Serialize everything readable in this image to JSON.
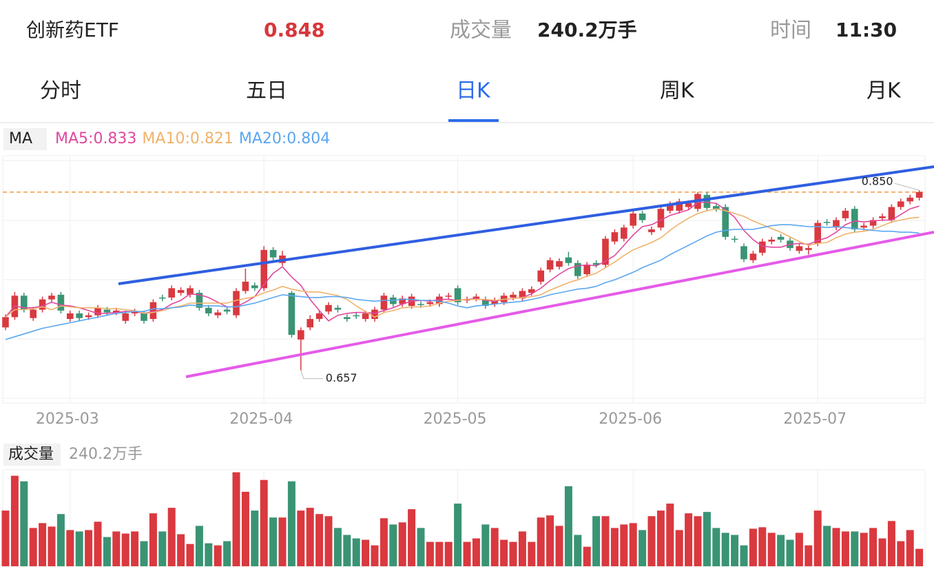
{
  "header": {
    "name": "创新药ETF",
    "price": 0.848,
    "volume_label": "成交量",
    "volume": "240.2万手",
    "time_label": "时间",
    "time": "11:30"
  },
  "tabs": [
    {
      "label": "分时"
    },
    {
      "label": "五日"
    },
    {
      "label": "日K",
      "active": true
    },
    {
      "label": "周K"
    },
    {
      "label": "月K"
    }
  ],
  "chart_data": [
    {
      "type": "candlestick",
      "legend_title": "MA",
      "up_color": "#d9393f",
      "down_color": "#3a9474",
      "ylim": [
        0.622,
        0.887
      ],
      "categories": [
        null,
        null,
        null,
        null,
        null,
        null,
        null,
        "2025-03",
        null,
        null,
        null,
        null,
        null,
        null,
        null,
        null,
        null,
        null,
        null,
        null,
        null,
        null,
        null,
        null,
        null,
        null,
        null,
        null,
        "2025-04",
        null,
        null,
        null,
        null,
        null,
        null,
        null,
        null,
        null,
        null,
        null,
        null,
        null,
        null,
        null,
        null,
        null,
        null,
        null,
        null,
        "2025-05",
        null,
        null,
        null,
        null,
        null,
        null,
        null,
        null,
        null,
        null,
        null,
        null,
        null,
        null,
        null,
        null,
        null,
        null,
        "2025-06",
        null,
        null,
        null,
        null,
        null,
        null,
        null,
        null,
        null,
        null,
        null,
        null,
        null,
        null,
        null,
        null,
        null,
        null,
        null,
        "2025-07",
        null,
        null,
        null,
        null,
        null,
        null,
        null,
        null,
        null,
        null,
        null
      ],
      "open": [
        0.703,
        0.714,
        0.737,
        0.713,
        0.722,
        0.733,
        0.738,
        0.712,
        0.718,
        0.714,
        0.716,
        0.722,
        0.719,
        0.71,
        0.718,
        0.718,
        0.712,
        0.735,
        0.735,
        0.74,
        0.738,
        0.74,
        0.724,
        0.716,
        0.722,
        0.716,
        0.742,
        0.748,
        0.745,
        0.786,
        0.772,
        0.74,
        0.69,
        0.703,
        0.712,
        0.72,
        0.724,
        0.714,
        0.716,
        0.712,
        0.712,
        0.722,
        0.735,
        0.728,
        0.726,
        0.728,
        0.728,
        0.728,
        0.736,
        0.745,
        0.732,
        0.734,
        0.733,
        0.728,
        0.73,
        0.735,
        0.734,
        0.74,
        0.752,
        0.765,
        0.768,
        0.778,
        0.772,
        0.76,
        0.772,
        0.77,
        0.795,
        0.798,
        0.812,
        0.825,
        0.805,
        0.81,
        0.828,
        0.828,
        0.832,
        0.83,
        0.845,
        0.833,
        0.832,
        0.798,
        0.79,
        0.775,
        0.783,
        0.795,
        0.8,
        0.796,
        0.785,
        0.786,
        0.793,
        0.816,
        0.81,
        0.82,
        0.83,
        0.81,
        0.812,
        0.82,
        0.818,
        0.832,
        0.838,
        0.842
      ],
      "high": [
        0.717,
        0.741,
        0.74,
        0.725,
        0.736,
        0.74,
        0.741,
        0.721,
        0.721,
        0.719,
        0.727,
        0.725,
        0.724,
        0.721,
        0.723,
        0.721,
        0.733,
        0.738,
        0.748,
        0.746,
        0.748,
        0.743,
        0.727,
        0.722,
        0.725,
        0.745,
        0.766,
        0.751,
        0.79,
        0.789,
        0.785,
        0.742,
        0.703,
        0.716,
        0.721,
        0.73,
        0.727,
        0.717,
        0.719,
        0.721,
        0.725,
        0.74,
        0.738,
        0.737,
        0.739,
        0.731,
        0.733,
        0.739,
        0.74,
        0.748,
        0.736,
        0.739,
        0.736,
        0.735,
        0.74,
        0.741,
        0.745,
        0.747,
        0.767,
        0.778,
        0.777,
        0.784,
        0.775,
        0.773,
        0.775,
        0.801,
        0.808,
        0.813,
        0.828,
        0.828,
        0.811,
        0.833,
        0.838,
        0.841,
        0.839,
        0.848,
        0.848,
        0.836,
        0.835,
        0.801,
        0.793,
        0.785,
        0.798,
        0.8,
        0.803,
        0.799,
        0.793,
        0.791,
        0.818,
        0.819,
        0.821,
        0.831,
        0.833,
        0.815,
        0.821,
        0.825,
        0.835,
        0.841,
        0.845,
        0.85
      ],
      "low": [
        0.7,
        0.711,
        0.719,
        0.71,
        0.719,
        0.73,
        0.718,
        0.709,
        0.71,
        0.711,
        0.713,
        0.716,
        0.716,
        0.707,
        0.715,
        0.707,
        0.709,
        0.731,
        0.732,
        0.737,
        0.735,
        0.721,
        0.715,
        0.713,
        0.717,
        0.713,
        0.739,
        0.742,
        0.742,
        0.775,
        0.769,
        0.692,
        0.657,
        0.7,
        0.709,
        0.717,
        0.719,
        0.709,
        0.712,
        0.709,
        0.709,
        0.719,
        0.725,
        0.725,
        0.723,
        0.724,
        0.725,
        0.725,
        0.733,
        0.727,
        0.729,
        0.731,
        0.723,
        0.725,
        0.727,
        0.732,
        0.731,
        0.737,
        0.749,
        0.762,
        0.765,
        0.769,
        0.755,
        0.757,
        0.767,
        0.767,
        0.792,
        0.795,
        0.809,
        0.815,
        0.802,
        0.807,
        0.825,
        0.825,
        0.829,
        0.827,
        0.828,
        0.827,
        0.797,
        0.794,
        0.773,
        0.772,
        0.78,
        0.792,
        0.794,
        0.785,
        0.782,
        0.781,
        0.79,
        0.812,
        0.807,
        0.817,
        0.805,
        0.807,
        0.809,
        0.817,
        0.815,
        0.829,
        0.835,
        0.839
      ],
      "close": [
        0.714,
        0.737,
        0.722,
        0.722,
        0.733,
        0.737,
        0.721,
        0.718,
        0.713,
        0.716,
        0.724,
        0.719,
        0.721,
        0.718,
        0.72,
        0.71,
        0.73,
        0.734,
        0.745,
        0.743,
        0.745,
        0.724,
        0.718,
        0.719,
        0.72,
        0.742,
        0.752,
        0.745,
        0.786,
        0.778,
        0.78,
        0.695,
        0.7,
        0.712,
        0.718,
        0.727,
        0.722,
        0.712,
        0.715,
        0.718,
        0.722,
        0.737,
        0.728,
        0.734,
        0.736,
        0.727,
        0.73,
        0.736,
        0.737,
        0.73,
        0.733,
        0.736,
        0.726,
        0.732,
        0.737,
        0.738,
        0.742,
        0.744,
        0.764,
        0.775,
        0.774,
        0.772,
        0.758,
        0.77,
        0.77,
        0.798,
        0.805,
        0.81,
        0.825,
        0.818,
        0.808,
        0.83,
        0.835,
        0.838,
        0.836,
        0.846,
        0.831,
        0.83,
        0.8,
        0.797,
        0.776,
        0.782,
        0.795,
        0.797,
        0.797,
        0.788,
        0.79,
        0.788,
        0.815,
        0.815,
        0.818,
        0.828,
        0.808,
        0.812,
        0.818,
        0.822,
        0.832,
        0.838,
        0.842,
        0.848
      ],
      "series": [
        {
          "name": "MA5:0.833",
          "color": "#e0479e",
          "values": [
            0.714,
            0.726,
            0.724,
            0.724,
            0.726,
            0.73,
            0.727,
            0.726,
            0.724,
            0.721,
            0.718,
            0.718,
            0.719,
            0.72,
            0.72,
            0.718,
            0.72,
            0.722,
            0.728,
            0.732,
            0.739,
            0.738,
            0.735,
            0.73,
            0.725,
            0.725,
            0.73,
            0.736,
            0.749,
            0.761,
            0.768,
            0.757,
            0.748,
            0.733,
            0.721,
            0.71,
            0.716,
            0.718,
            0.719,
            0.719,
            0.718,
            0.721,
            0.724,
            0.728,
            0.731,
            0.732,
            0.731,
            0.733,
            0.733,
            0.732,
            0.733,
            0.734,
            0.732,
            0.731,
            0.733,
            0.734,
            0.735,
            0.739,
            0.745,
            0.753,
            0.76,
            0.766,
            0.769,
            0.77,
            0.769,
            0.774,
            0.78,
            0.791,
            0.802,
            0.811,
            0.813,
            0.818,
            0.823,
            0.826,
            0.829,
            0.837,
            0.837,
            0.836,
            0.829,
            0.821,
            0.807,
            0.797,
            0.79,
            0.789,
            0.789,
            0.792,
            0.793,
            0.792,
            0.796,
            0.799,
            0.805,
            0.813,
            0.817,
            0.816,
            0.817,
            0.818,
            0.818,
            0.824,
            0.83,
            0.833
          ]
        },
        {
          "name": "MA10:0.821",
          "color": "#f0b26a",
          "values": [
            0.714,
            0.722,
            0.722,
            0.723,
            0.725,
            0.722,
            0.726,
            0.725,
            0.724,
            0.724,
            0.724,
            0.723,
            0.723,
            0.722,
            0.721,
            0.718,
            0.719,
            0.721,
            0.724,
            0.726,
            0.729,
            0.729,
            0.729,
            0.729,
            0.729,
            0.732,
            0.734,
            0.736,
            0.74,
            0.743,
            0.747,
            0.744,
            0.742,
            0.741,
            0.741,
            0.739,
            0.737,
            0.733,
            0.726,
            0.72,
            0.714,
            0.719,
            0.721,
            0.724,
            0.725,
            0.725,
            0.726,
            0.729,
            0.731,
            0.732,
            0.733,
            0.733,
            0.733,
            0.732,
            0.733,
            0.734,
            0.735,
            0.736,
            0.738,
            0.743,
            0.747,
            0.751,
            0.754,
            0.758,
            0.761,
            0.767,
            0.773,
            0.78,
            0.786,
            0.79,
            0.794,
            0.799,
            0.807,
            0.814,
            0.82,
            0.825,
            0.828,
            0.83,
            0.828,
            0.825,
            0.822,
            0.817,
            0.813,
            0.809,
            0.805,
            0.8,
            0.795,
            0.791,
            0.793,
            0.794,
            0.799,
            0.803,
            0.805,
            0.806,
            0.808,
            0.812,
            0.816,
            0.818,
            0.82,
            0.821
          ]
        },
        {
          "name": "MA20:0.804",
          "color": "#5aa6f0",
          "values": [
            0.69,
            0.693,
            0.696,
            0.699,
            0.702,
            0.704,
            0.706,
            0.708,
            0.71,
            0.712,
            0.714,
            0.716,
            0.718,
            0.719,
            0.72,
            0.72,
            0.723,
            0.723,
            0.724,
            0.725,
            0.727,
            0.726,
            0.726,
            0.726,
            0.725,
            0.725,
            0.727,
            0.729,
            0.732,
            0.735,
            0.738,
            0.737,
            0.736,
            0.735,
            0.735,
            0.736,
            0.736,
            0.735,
            0.733,
            0.732,
            0.731,
            0.732,
            0.732,
            0.733,
            0.733,
            0.732,
            0.732,
            0.731,
            0.729,
            0.726,
            0.724,
            0.726,
            0.727,
            0.728,
            0.729,
            0.73,
            0.731,
            0.733,
            0.735,
            0.738,
            0.74,
            0.742,
            0.744,
            0.745,
            0.747,
            0.751,
            0.754,
            0.758,
            0.762,
            0.767,
            0.771,
            0.775,
            0.781,
            0.786,
            0.791,
            0.796,
            0.801,
            0.805,
            0.807,
            0.808,
            0.808,
            0.808,
            0.81,
            0.812,
            0.813,
            0.813,
            0.812,
            0.811,
            0.811,
            0.81,
            0.811,
            0.81,
            0.809,
            0.808,
            0.807,
            0.806,
            0.806,
            0.805,
            0.805,
            0.804
          ]
        }
      ],
      "annotations": [
        {
          "value": 0.85,
          "label": "0.850"
        },
        {
          "value": 0.657,
          "label": "0.657"
        }
      ]
    },
    {
      "type": "bar",
      "title": "成交量",
      "subtitle": "240.2万手",
      "ylim": [
        0,
        1330
      ],
      "values": [
        768,
        1248,
        1171,
        528,
        595,
        547,
        720,
        499,
        480,
        499,
        614,
        403,
        480,
        451,
        480,
        346,
        730,
        480,
        806,
        442,
        307,
        557,
        317,
        288,
        346,
        1296,
        1027,
        768,
        1190,
        672,
        672,
        1171,
        768,
        806,
        720,
        691,
        528,
        432,
        384,
        365,
        288,
        662,
        576,
        605,
        787,
        528,
        336,
        336,
        336,
        864,
        336,
        384,
        576,
        528,
        365,
        336,
        480,
        336,
        672,
        701,
        557,
        1104,
        432,
        269,
        691,
        691,
        528,
        576,
        595,
        499,
        691,
        768,
        864,
        499,
        730,
        691,
        749,
        528,
        461,
        432,
        288,
        518,
        538,
        461,
        432,
        365,
        461,
        288,
        768,
        557,
        528,
        480,
        480,
        461,
        528,
        384,
        624,
        346,
        499,
        240.2
      ]
    }
  ]
}
